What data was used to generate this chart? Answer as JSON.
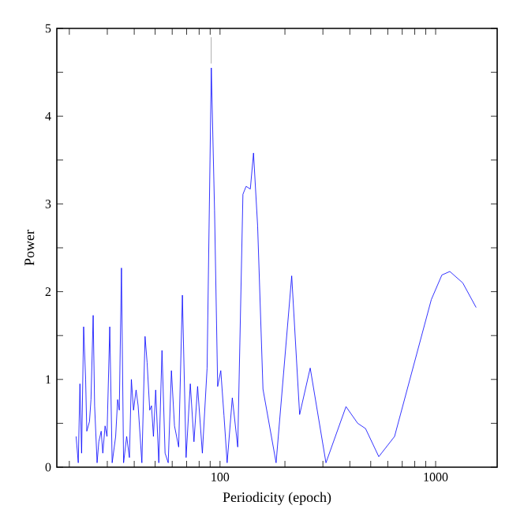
{
  "chart_data": {
    "type": "line",
    "xlabel": "Periodicity (epoch)",
    "ylabel": "Power",
    "log": "x",
    "xlim": [
      17.5,
      1930
    ],
    "ylim": [
      0,
      5
    ],
    "xticks": [
      {
        "value": 20,
        "label": null
      },
      {
        "value": 30,
        "label": null
      },
      {
        "value": 40,
        "label": null
      },
      {
        "value": 50,
        "label": null
      },
      {
        "value": 60,
        "label": null
      },
      {
        "value": 70,
        "label": null
      },
      {
        "value": 80,
        "label": null
      },
      {
        "value": 90,
        "label": null
      },
      100,
      {
        "value": 200,
        "label": null
      },
      {
        "value": 300,
        "label": null
      },
      {
        "value": 400,
        "label": null
      },
      {
        "value": 500,
        "label": null
      },
      {
        "value": 600,
        "label": null
      },
      {
        "value": 700,
        "label": null
      },
      {
        "value": 800,
        "label": null
      },
      {
        "value": 900,
        "label": null
      },
      1000
    ],
    "yticks": [
      0,
      {
        "value": 0.5,
        "label": null
      },
      1,
      {
        "value": 1.5,
        "label": null
      },
      2,
      {
        "value": 2.5,
        "label": null
      },
      3,
      {
        "value": 3.5,
        "label": null
      },
      4,
      {
        "value": 4.5,
        "label": null
      },
      5
    ],
    "grid": false,
    "series": [
      {
        "color": "#0000ff",
        "line_style": "solid",
        "x": [
          21.5,
          22.0,
          22.4,
          22.8,
          23.3,
          23.8,
          24.1,
          24.8,
          25.2,
          25.8,
          26.2,
          26.9,
          27.4,
          28.1,
          28.6,
          29.3,
          29.9,
          30.8,
          31.6,
          32.8,
          33.5,
          34.1,
          34.9,
          35.7,
          36.9,
          38.0,
          38.8,
          39.7,
          40.8,
          41.7,
          43.4,
          44.9,
          45.9,
          47.2,
          48.1,
          49.1,
          50.3,
          52.0,
          53.8,
          55.6,
          57.5,
          59.5,
          61.5,
          64.3,
          66.9,
          69.6,
          72.8,
          75.7,
          78.7,
          82.8,
          87.1,
          91.1,
          94.3,
          97.5,
          100.8,
          104.3,
          107.9,
          114.0,
          120.8,
          127.7,
          132.1,
          138.2,
          143.0,
          149.4,
          158.2,
          182,
          215,
          234,
          262,
          310,
          384,
          435,
          473,
          545,
          645,
          955,
          1069,
          1164,
          1336,
          1541
        ],
        "values": [
          0.35,
          0.05,
          0.95,
          0.16,
          1.6,
          1.0,
          0.41,
          0.52,
          0.77,
          1.73,
          0.7,
          0.05,
          0.29,
          0.41,
          0.16,
          0.47,
          0.35,
          1.6,
          0.05,
          0.35,
          0.77,
          0.65,
          2.27,
          0.05,
          0.35,
          0.11,
          1.0,
          0.65,
          0.88,
          0.7,
          0.05,
          1.49,
          1.19,
          0.65,
          0.7,
          0.35,
          0.88,
          0.05,
          1.33,
          0.16,
          0.05,
          1.1,
          0.47,
          0.23,
          1.96,
          0.11,
          0.95,
          0.29,
          0.92,
          0.16,
          1.13,
          4.55,
          2.93,
          0.92,
          1.1,
          0.59,
          0.05,
          0.79,
          0.23,
          3.11,
          3.2,
          3.17,
          3.58,
          2.75,
          0.89,
          0.05,
          2.18,
          0.6,
          1.13,
          0.05,
          0.69,
          0.5,
          0.44,
          0.12,
          0.35,
          1.91,
          2.19,
          2.23,
          2.1,
          1.82
        ]
      },
      {
        "color": "#999999",
        "line_style": "solid",
        "x": [
          91,
          91
        ],
        "values": [
          4.6,
          4.9
        ]
      }
    ]
  }
}
